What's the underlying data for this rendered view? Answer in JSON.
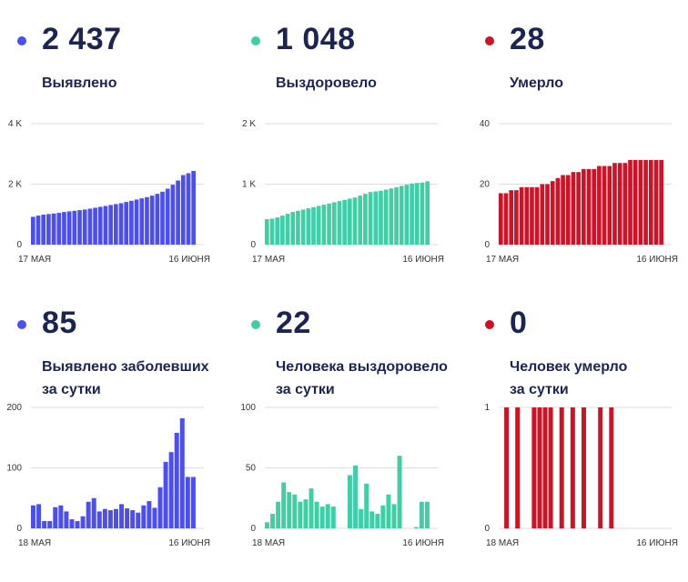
{
  "colors": {
    "blue": "#4b4ef0",
    "green": "#3ecfa6",
    "red": "#cf1225",
    "axis": "#dddddd",
    "text": "#333333"
  },
  "panels": [
    {
      "dot_color": "#4b4ef0",
      "value": "2 437",
      "label": "Выявлено"
    },
    {
      "dot_color": "#3ecfa6",
      "value": "1 048",
      "label": "Выздоровело"
    },
    {
      "dot_color": "#cf1225",
      "value": "28",
      "label": "Умерло"
    },
    {
      "dot_color": "#4b4ef0",
      "value": "85",
      "label": "Выявлено заболевших\nза сутки"
    },
    {
      "dot_color": "#3ecfa6",
      "value": "22",
      "label": "Человека выздоровело\nза сутки"
    },
    {
      "dot_color": "#cf1225",
      "value": "0",
      "label": "Человек умерло\nза сутки"
    }
  ],
  "chart_data": [
    {
      "type": "bar",
      "color": "#4b4ef0",
      "ylim": [
        0,
        4000
      ],
      "yticks": [
        0,
        2000,
        4000
      ],
      "ytick_labels": [
        "0",
        "2 K",
        "4 K"
      ],
      "xtick_labels": [
        "17 МАЯ",
        "16 ИЮНЯ"
      ],
      "values": [
        920,
        960,
        990,
        1010,
        1030,
        1050,
        1080,
        1100,
        1120,
        1140,
        1160,
        1190,
        1220,
        1250,
        1280,
        1310,
        1340,
        1370,
        1410,
        1450,
        1490,
        1530,
        1570,
        1620,
        1680,
        1750,
        1850,
        1980,
        2120,
        2300,
        2360,
        2437
      ]
    },
    {
      "type": "bar",
      "color": "#3ecfa6",
      "ylim": [
        0,
        2000
      ],
      "yticks": [
        0,
        1000,
        2000
      ],
      "ytick_labels": [
        "0",
        "1 K",
        "2 K"
      ],
      "xtick_labels": [
        "17 МАЯ",
        "16 ИЮНЯ"
      ],
      "values": [
        420,
        430,
        450,
        480,
        510,
        540,
        560,
        580,
        600,
        620,
        640,
        660,
        680,
        700,
        720,
        740,
        760,
        780,
        810,
        840,
        870,
        880,
        890,
        910,
        930,
        950,
        970,
        990,
        1010,
        1020,
        1026,
        1048
      ]
    },
    {
      "type": "bar",
      "color": "#cf1225",
      "ylim": [
        0,
        40
      ],
      "yticks": [
        0,
        20,
        40
      ],
      "ytick_labels": [
        "0",
        "20",
        "40"
      ],
      "xtick_labels": [
        "17 МАЯ",
        "16 ИЮНЯ"
      ],
      "values": [
        17,
        17,
        18,
        18,
        19,
        19,
        19,
        19,
        20,
        20,
        21,
        22,
        23,
        23,
        24,
        24,
        25,
        25,
        25,
        26,
        26,
        26,
        27,
        27,
        27,
        28,
        28,
        28,
        28,
        28,
        28,
        28
      ]
    },
    {
      "type": "bar",
      "color": "#4b4ef0",
      "ylim": [
        0,
        200
      ],
      "yticks": [
        0,
        100,
        200
      ],
      "ytick_labels": [
        "0",
        "100",
        "200"
      ],
      "xtick_labels": [
        "18 МАЯ",
        "16 ИЮНЯ"
      ],
      "values": [
        38,
        40,
        12,
        12,
        35,
        38,
        28,
        15,
        12,
        20,
        44,
        50,
        28,
        32,
        30,
        32,
        40,
        33,
        30,
        26,
        38,
        45,
        34,
        68,
        110,
        126,
        158,
        182,
        85,
        85
      ]
    },
    {
      "type": "bar",
      "color": "#3ecfa6",
      "ylim": [
        0,
        100
      ],
      "yticks": [
        0,
        50,
        100
      ],
      "ytick_labels": [
        "0",
        "50",
        "100"
      ],
      "xtick_labels": [
        "18 МАЯ",
        "16 ИЮНЯ"
      ],
      "values": [
        5,
        12,
        22,
        38,
        30,
        28,
        22,
        24,
        33,
        22,
        18,
        20,
        18,
        0,
        0,
        44,
        52,
        16,
        37,
        14,
        12,
        19,
        28,
        20,
        60,
        0,
        0,
        1,
        22,
        22
      ]
    },
    {
      "type": "bar",
      "color": "#cf1225",
      "ylim": [
        0,
        1
      ],
      "yticks": [
        0,
        1
      ],
      "ytick_labels": [
        "0",
        "1"
      ],
      "xtick_labels": [
        "18 МАЯ",
        "16 ИЮНЯ"
      ],
      "values": [
        0,
        1,
        0,
        1,
        0,
        0,
        1,
        1,
        1,
        1,
        0,
        1,
        0,
        1,
        0,
        1,
        0,
        0,
        1,
        0,
        1,
        0,
        0,
        0,
        0,
        0,
        0,
        0,
        0,
        0
      ]
    }
  ]
}
